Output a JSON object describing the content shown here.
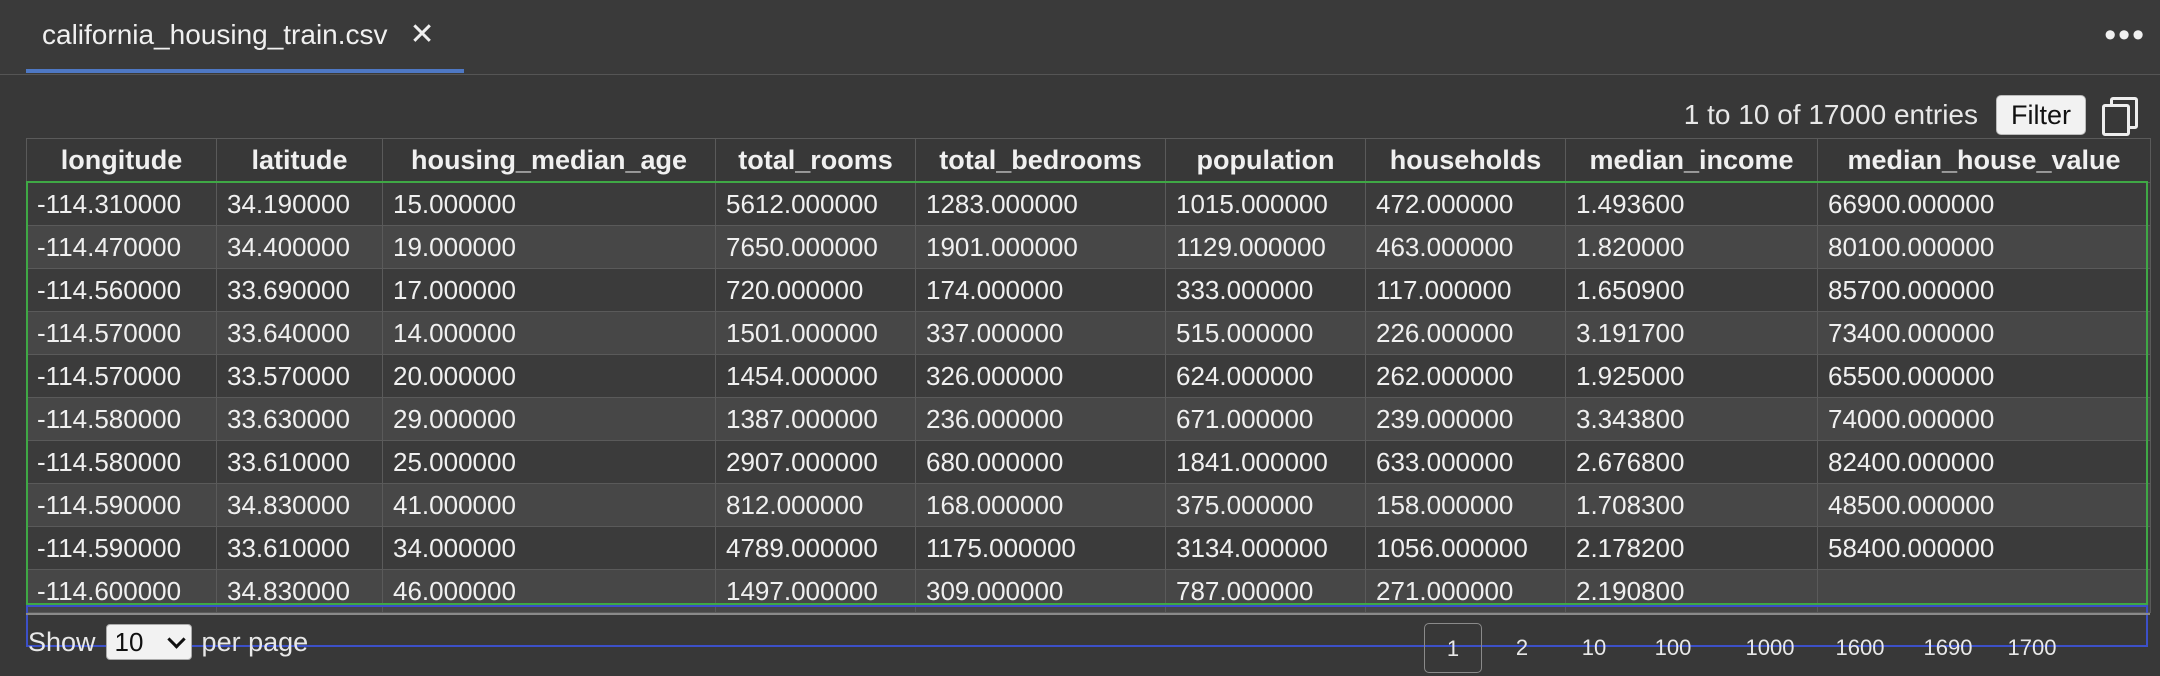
{
  "tab": {
    "title": "california_housing_train.csv",
    "close_glyph": "✕"
  },
  "toolbar": {
    "entries_text": "1 to 10 of 17000 entries",
    "filter_label": "Filter"
  },
  "table": {
    "columns": [
      "longitude",
      "latitude",
      "housing_median_age",
      "total_rooms",
      "total_bedrooms",
      "population",
      "households",
      "median_income",
      "median_house_value"
    ],
    "rows": [
      [
        "-114.310000",
        "34.190000",
        "15.000000",
        "5612.000000",
        "1283.000000",
        "1015.000000",
        "472.000000",
        "1.493600",
        "66900.000000"
      ],
      [
        "-114.470000",
        "34.400000",
        "19.000000",
        "7650.000000",
        "1901.000000",
        "1129.000000",
        "463.000000",
        "1.820000",
        "80100.000000"
      ],
      [
        "-114.560000",
        "33.690000",
        "17.000000",
        "720.000000",
        "174.000000",
        "333.000000",
        "117.000000",
        "1.650900",
        "85700.000000"
      ],
      [
        "-114.570000",
        "33.640000",
        "14.000000",
        "1501.000000",
        "337.000000",
        "515.000000",
        "226.000000",
        "3.191700",
        "73400.000000"
      ],
      [
        "-114.570000",
        "33.570000",
        "20.000000",
        "1454.000000",
        "326.000000",
        "624.000000",
        "262.000000",
        "1.925000",
        "65500.000000"
      ],
      [
        "-114.580000",
        "33.630000",
        "29.000000",
        "1387.000000",
        "236.000000",
        "671.000000",
        "239.000000",
        "3.343800",
        "74000.000000"
      ],
      [
        "-114.580000",
        "33.610000",
        "25.000000",
        "2907.000000",
        "680.000000",
        "1841.000000",
        "633.000000",
        "2.676800",
        "82400.000000"
      ],
      [
        "-114.590000",
        "34.830000",
        "41.000000",
        "812.000000",
        "168.000000",
        "375.000000",
        "158.000000",
        "1.708300",
        "48500.000000"
      ],
      [
        "-114.590000",
        "33.610000",
        "34.000000",
        "4789.000000",
        "1175.000000",
        "3134.000000",
        "1056.000000",
        "2.178200",
        "58400.000000"
      ],
      [
        "-114.600000",
        "34.830000",
        "46.000000",
        "1497.000000",
        "309.000000",
        "787.000000",
        "271.000000",
        "2.190800",
        ""
      ]
    ]
  },
  "footer": {
    "show_label": "Show",
    "per_page_value": "10",
    "per_page_label": "per page",
    "pages": [
      "1",
      "2",
      "10",
      "100",
      "1000",
      "1600",
      "1690",
      "1700"
    ],
    "active_page": "1"
  },
  "icons": {
    "close": "close-icon",
    "more": "more-options-icon",
    "copy": "copy-icon",
    "dropdown": "chevron-down-icon"
  },
  "colors": {
    "background": "#383838",
    "tab_accent": "#4e78c4",
    "selection_green": "#3fa845",
    "selection_blue": "#3c50c8"
  }
}
